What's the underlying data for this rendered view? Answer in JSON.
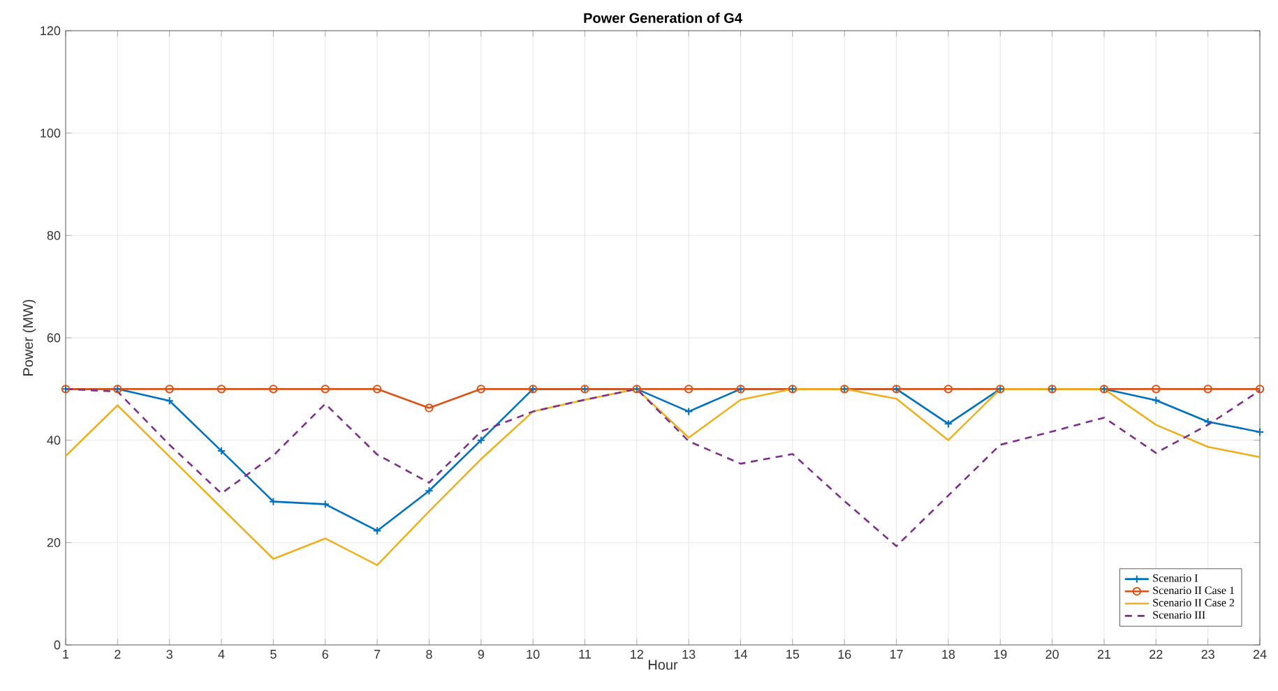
{
  "chart_data": {
    "type": "line",
    "title": "Power Generation of G4",
    "xlabel": "Hour",
    "ylabel": "Power (MW)",
    "x": [
      1,
      2,
      3,
      4,
      5,
      6,
      7,
      8,
      9,
      10,
      11,
      12,
      13,
      14,
      15,
      16,
      17,
      18,
      19,
      20,
      21,
      22,
      23,
      24
    ],
    "xlim": [
      1,
      24
    ],
    "xticks": [
      1,
      2,
      3,
      4,
      5,
      6,
      7,
      8,
      9,
      10,
      11,
      12,
      13,
      14,
      15,
      16,
      17,
      18,
      19,
      20,
      21,
      22,
      23,
      24
    ],
    "ylim": [
      0,
      120
    ],
    "yticks": [
      0,
      20,
      40,
      60,
      80,
      100,
      120
    ],
    "grid": true,
    "legend": "bottom right",
    "series": [
      {
        "name": "Scenario I",
        "color": "#0072bd",
        "marker": "cross",
        "line_style": "solid",
        "values": [
          50,
          50,
          47.7,
          37.9,
          28,
          27.5,
          22.3,
          30.1,
          40,
          50,
          50,
          50,
          45.6,
          50,
          50,
          50,
          50,
          43.2,
          50,
          50,
          50,
          47.8,
          43.6,
          41.6
        ]
      },
      {
        "name": "Scenario II Case 1",
        "color": "#d95319",
        "marker": "circle",
        "line_style": "solid",
        "values": [
          50,
          50,
          50,
          50,
          50,
          50,
          50,
          46.3,
          50,
          50,
          50,
          50,
          50,
          50,
          50,
          50,
          50,
          50,
          50,
          50,
          50,
          50,
          50,
          50
        ]
      },
      {
        "name": "Scenario II Case 2",
        "color": "#edb120",
        "marker": "none",
        "line_style": "solid",
        "values": [
          36.9,
          46.8,
          36.8,
          26.8,
          16.8,
          20.8,
          15.6,
          26.1,
          36.3,
          45.6,
          47.9,
          50,
          40.5,
          47.9,
          50,
          50,
          48.1,
          40,
          50,
          50,
          50,
          43,
          38.7,
          36.7
        ]
      },
      {
        "name": "Scenario III",
        "color": "#7e2f8e",
        "marker": "none",
        "line_style": "dashed",
        "values": [
          50,
          49.5,
          39.1,
          29.6,
          37,
          47.1,
          37.2,
          31.7,
          41.7,
          45.6,
          47.9,
          50,
          39.8,
          35.4,
          37.3,
          28.1,
          19.3,
          29.2,
          39.1,
          41.7,
          44.4,
          37.5,
          43,
          49.7
        ]
      }
    ]
  }
}
